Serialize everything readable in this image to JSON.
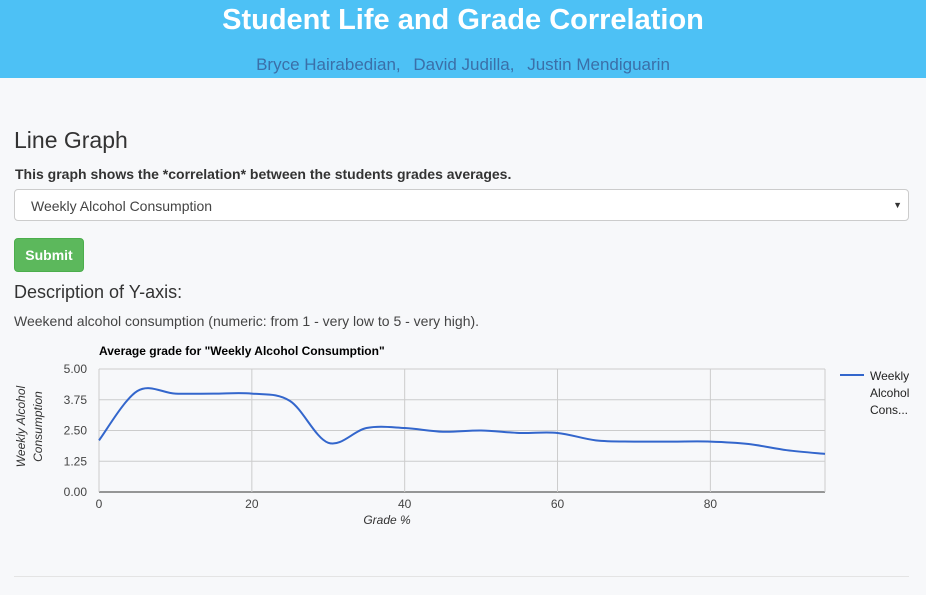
{
  "header": {
    "title": "Student Life and Grade Correlation",
    "authors": [
      "Bryce Hairabedian,",
      "David Judilla,",
      "Justin Mendiguarin"
    ]
  },
  "main": {
    "section_title": "Line Graph",
    "description": "This graph shows the *correlation* between the students grades averages.",
    "select": {
      "selected": "Weekly Alcohol Consumption"
    },
    "submit_label": "Submit",
    "y_desc_title": "Description of Y-axis:",
    "y_desc_text": "Weekend alcohol consumption (numeric: from 1 - very low to 5 - very high)."
  },
  "chart_data": {
    "type": "line",
    "title": "Average grade for \"Weekly Alcohol Consumption\"",
    "xlabel": "Grade %",
    "ylabel": "Weekly Alcohol Consumption",
    "xlim": [
      0,
      95
    ],
    "ylim": [
      0,
      5
    ],
    "x_ticks": [
      "0",
      "20",
      "40",
      "60",
      "80"
    ],
    "y_ticks": [
      "0.00",
      "1.25",
      "2.50",
      "3.75",
      "5.00"
    ],
    "grid": true,
    "legend_position": "right",
    "legend_label": "Weekly Alcohol Cons...",
    "series": [
      {
        "name": "Weekly Alcohol Cons...",
        "color": "#3366cc",
        "x": [
          0,
          5,
          10,
          15,
          20,
          25,
          30,
          35,
          40,
          45,
          50,
          55,
          60,
          65,
          70,
          75,
          80,
          85,
          90,
          95
        ],
        "y": [
          2.1,
          4.1,
          4.0,
          4.0,
          4.0,
          3.7,
          2.0,
          2.6,
          2.6,
          2.45,
          2.5,
          2.4,
          2.4,
          2.1,
          2.05,
          2.05,
          2.05,
          1.95,
          1.7,
          1.55
        ]
      }
    ]
  }
}
